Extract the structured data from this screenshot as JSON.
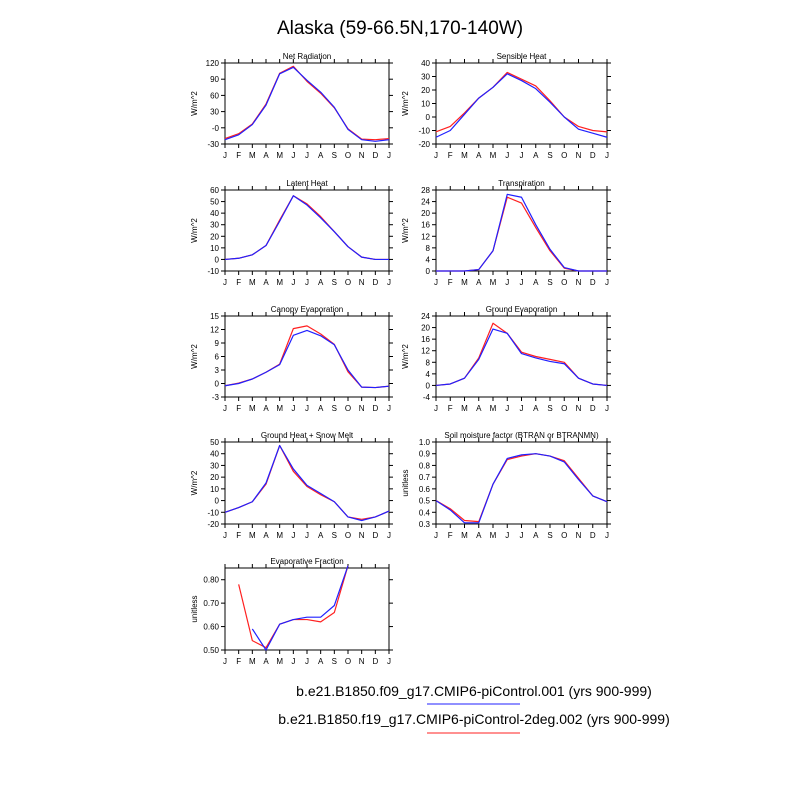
{
  "title": "Alaska (59-66.5N,170-140W)",
  "months": [
    "J",
    "F",
    "M",
    "A",
    "M",
    "J",
    "J",
    "A",
    "S",
    "O",
    "N",
    "D",
    "J"
  ],
  "legend": {
    "entries": [
      {
        "label": "b.e21.B1850.f09_g17.CMIP6-piControl.001 (yrs 900-999)",
        "color": "#2020ff"
      },
      {
        "label": "b.e21.B1850.f19_g17.CMIP6-piControl-2deg.002 (yrs 900-999)",
        "color": "#ff2020"
      }
    ]
  },
  "chart_data": [
    {
      "type": "line",
      "title": "Net Radiation",
      "ylabel": "W/m^2",
      "ylim": [
        -30,
        120
      ],
      "yticks": [
        -30,
        0,
        30,
        60,
        90,
        120
      ],
      "yticklabels": [
        "-30",
        "-0",
        "30",
        "60",
        "90",
        "120"
      ],
      "series": [
        {
          "name": "b.e21.B1850.f09_g17.CMIP6-piControl.001",
          "values": [
            -22,
            -13,
            6,
            42,
            100,
            112,
            88,
            66,
            38,
            -3,
            -22,
            -25,
            -22
          ]
        },
        {
          "name": "b.e21.B1850.f19_g17.CMIP6-piControl-2deg.002",
          "values": [
            -20,
            -11,
            7,
            44,
            101,
            114,
            86,
            64,
            37,
            -2,
            -21,
            -22,
            -20
          ]
        }
      ]
    },
    {
      "type": "line",
      "title": "Sensible Heat",
      "ylabel": "W/m^2",
      "ylim": [
        -20,
        40
      ],
      "yticks": [
        -20,
        -10,
        0,
        10,
        20,
        30,
        40
      ],
      "yticklabels": [
        "-20",
        "-10",
        "0",
        "10",
        "20",
        "30",
        "40"
      ],
      "series": [
        {
          "name": "b.e21.B1850.f09_g17.CMIP6-piControl.001",
          "values": [
            -15,
            -10,
            2,
            14,
            22,
            32,
            27,
            21,
            11,
            0,
            -9,
            -12,
            -15
          ]
        },
        {
          "name": "b.e21.B1850.f19_g17.CMIP6-piControl-2deg.002",
          "values": [
            -11,
            -7,
            3,
            14,
            22,
            33,
            28,
            23,
            12,
            0,
            -7,
            -10,
            -11
          ]
        }
      ]
    },
    {
      "type": "line",
      "title": "Latent Heat",
      "ylabel": "W/m^2",
      "ylim": [
        -10,
        60
      ],
      "yticks": [
        -10,
        0,
        10,
        20,
        30,
        40,
        50,
        60
      ],
      "yticklabels": [
        "-10",
        "0",
        "10",
        "20",
        "30",
        "40",
        "50",
        "60"
      ],
      "series": [
        {
          "name": "b.e21.B1850.f09_g17.CMIP6-piControl.001",
          "values": [
            0,
            1,
            4,
            12,
            33,
            55,
            47,
            36,
            24,
            11,
            2,
            0,
            0
          ]
        },
        {
          "name": "b.e21.B1850.f19_g17.CMIP6-piControl-2deg.002",
          "values": [
            0,
            1,
            4,
            12,
            34,
            55,
            48,
            37,
            24,
            11,
            2,
            0,
            0
          ]
        }
      ]
    },
    {
      "type": "line",
      "title": "Transpiration",
      "ylabel": "W/m^2",
      "ylim": [
        0,
        28
      ],
      "yticks": [
        0,
        4,
        8,
        12,
        16,
        20,
        24,
        28
      ],
      "yticklabels": [
        "0",
        "4",
        "8",
        "12",
        "16",
        "20",
        "24",
        "28"
      ],
      "series": [
        {
          "name": "b.e21.B1850.f09_g17.CMIP6-piControl.001",
          "values": [
            0,
            0,
            0,
            0.5,
            7,
            26.5,
            25.5,
            16,
            7.5,
            1.2,
            0,
            0,
            0
          ]
        },
        {
          "name": "b.e21.B1850.f19_g17.CMIP6-piControl-2deg.002",
          "values": [
            0,
            0,
            0,
            0.5,
            7,
            25.5,
            23.5,
            15,
            7,
            1,
            0,
            0,
            0
          ]
        }
      ]
    },
    {
      "type": "line",
      "title": "Canopy Evaporation",
      "ylabel": "W/m^2",
      "ylim": [
        -3,
        15
      ],
      "yticks": [
        -3,
        0,
        3,
        6,
        9,
        12,
        15
      ],
      "yticklabels": [
        "-3",
        "0",
        "3",
        "6",
        "9",
        "12",
        "15"
      ],
      "series": [
        {
          "name": "b.e21.B1850.f09_g17.CMIP6-piControl.001",
          "values": [
            -0.5,
            0,
            1,
            2.5,
            4.2,
            10.7,
            11.8,
            10.6,
            8.6,
            3,
            -0.8,
            -0.9,
            -0.6
          ]
        },
        {
          "name": "b.e21.B1850.f19_g17.CMIP6-piControl-2deg.002",
          "values": [
            -0.5,
            0.1,
            1,
            2.5,
            4.3,
            12.2,
            12.8,
            11,
            8.7,
            2.6,
            -0.8,
            -0.9,
            -0.6
          ]
        }
      ]
    },
    {
      "type": "line",
      "title": "Ground Evaporation",
      "ylabel": "W/m^2",
      "ylim": [
        -4,
        24
      ],
      "yticks": [
        -4,
        0,
        4,
        8,
        12,
        16,
        20,
        24
      ],
      "yticklabels": [
        "-4",
        "0",
        "4",
        "8",
        "12",
        "16",
        "20",
        "24"
      ],
      "series": [
        {
          "name": "b.e21.B1850.f09_g17.CMIP6-piControl.001",
          "values": [
            0,
            0.5,
            2.5,
            9,
            19.5,
            18,
            11,
            9.5,
            8.3,
            7.5,
            2.5,
            0.5,
            0
          ]
        },
        {
          "name": "b.e21.B1850.f19_g17.CMIP6-piControl-2deg.002",
          "values": [
            0,
            0.5,
            2.5,
            9.5,
            21.5,
            18,
            11.5,
            10,
            9,
            8,
            2.5,
            0.5,
            0
          ]
        }
      ]
    },
    {
      "type": "line",
      "title": "Ground Heat + Snow Melt",
      "ylabel": "W/m^2",
      "ylim": [
        -20,
        50
      ],
      "yticks": [
        -20,
        -10,
        0,
        10,
        20,
        30,
        40,
        50
      ],
      "yticklabels": [
        "-20",
        "-10",
        "0",
        "10",
        "20",
        "30",
        "40",
        "50"
      ],
      "series": [
        {
          "name": "b.e21.B1850.f09_g17.CMIP6-piControl.001",
          "values": [
            -10,
            -6,
            -1,
            15,
            47,
            27,
            13,
            6,
            -1,
            -14,
            -17,
            -14,
            -9
          ]
        },
        {
          "name": "b.e21.B1850.f19_g17.CMIP6-piControl-2deg.002",
          "values": [
            -10,
            -6,
            -1,
            14,
            47,
            25,
            12,
            5,
            -1,
            -14,
            -16,
            -14,
            -9
          ]
        }
      ]
    },
    {
      "type": "line",
      "title": "Soil moisture factor (BTRAN or BTRANMN)",
      "ylabel": "unitless",
      "ylim": [
        0.3,
        1.0
      ],
      "yticks": [
        0.3,
        0.4,
        0.5,
        0.6,
        0.7,
        0.8,
        0.9,
        1.0
      ],
      "yticklabels": [
        "0.3",
        "0.4",
        "0.5",
        "0.6",
        "0.7",
        "0.8",
        "0.9",
        "1.0"
      ],
      "series": [
        {
          "name": "b.e21.B1850.f09_g17.CMIP6-piControl.001",
          "values": [
            0.5,
            0.42,
            0.31,
            0.31,
            0.64,
            0.86,
            0.89,
            0.9,
            0.88,
            0.83,
            0.68,
            0.54,
            0.49
          ]
        },
        {
          "name": "b.e21.B1850.f19_g17.CMIP6-piControl-2deg.002",
          "values": [
            0.5,
            0.43,
            0.33,
            0.32,
            0.64,
            0.85,
            0.88,
            0.9,
            0.88,
            0.84,
            0.69,
            0.54,
            0.49
          ]
        }
      ]
    },
    {
      "type": "line",
      "title": "Evaporative Fraction",
      "ylabel": "unitless",
      "ylim": [
        0.5,
        0.85
      ],
      "yticks": [
        0.5,
        0.6,
        0.7,
        0.8
      ],
      "yticklabels": [
        "0.50",
        "0.60",
        "0.70",
        "0.80"
      ],
      "series": [
        {
          "name": "b.e21.B1850.f09_g17.CMIP6-piControl.001",
          "values": [
            null,
            null,
            0.59,
            0.5,
            0.61,
            0.63,
            0.64,
            0.64,
            0.69,
            0.86,
            null,
            null,
            null
          ]
        },
        {
          "name": "b.e21.B1850.f19_g17.CMIP6-piControl-2deg.002",
          "values": [
            null,
            0.78,
            0.54,
            0.51,
            0.61,
            0.63,
            0.63,
            0.62,
            0.66,
            0.86,
            null,
            null,
            null
          ]
        }
      ]
    }
  ]
}
